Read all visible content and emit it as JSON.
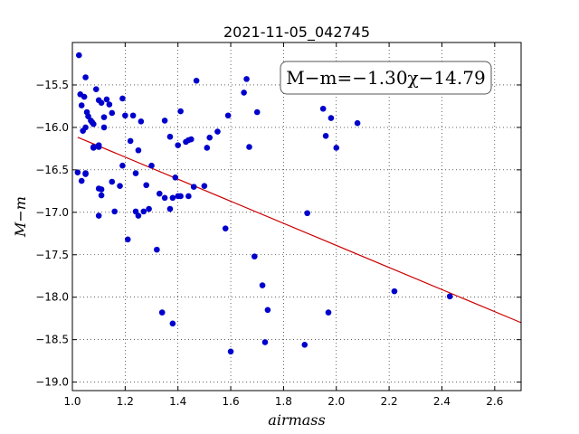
{
  "chart_data": {
    "type": "scatter",
    "title": "2021-11-05_042745",
    "xlabel": "airmass",
    "ylabel": "M−m",
    "annotation": "M−m=−1.30χ−14.79",
    "xlim": [
      1.0,
      2.7
    ],
    "ylim": [
      -19.1,
      -15.0
    ],
    "y_inverted": true,
    "grid": true,
    "xticks": [
      "1.0",
      "1.2",
      "1.4",
      "1.6",
      "1.8",
      "2.0",
      "2.2",
      "2.4",
      "2.6"
    ],
    "yticks": [
      "−15.5",
      "−16.0",
      "−16.5",
      "−17.0",
      "−17.5",
      "−18.0",
      "−18.5",
      "−19.0"
    ],
    "series": [
      {
        "marker_color": "#0000cc",
        "x": [
          1.025,
          1.03,
          1.035,
          1.04,
          1.05,
          1.045,
          1.05,
          1.055,
          1.06,
          1.07,
          1.075,
          1.08,
          1.09,
          1.1,
          1.11,
          1.12,
          1.13,
          1.14,
          1.15,
          1.19,
          1.2,
          1.23,
          1.26,
          1.35,
          1.41,
          1.44,
          1.47,
          1.52,
          1.55,
          1.59,
          1.65,
          1.66,
          1.67,
          1.7,
          1.95,
          1.96,
          1.98,
          2.0,
          2.08,
          1.1,
          1.12,
          1.08,
          1.1,
          1.05,
          1.05,
          1.02,
          1.035,
          1.08,
          1.1,
          1.11,
          1.15,
          1.18,
          1.19,
          1.22,
          1.24,
          1.25,
          1.28,
          1.3,
          1.37,
          1.39,
          1.4,
          1.43,
          1.45,
          1.5,
          1.51,
          1.11,
          1.16,
          1.1,
          1.24,
          1.25,
          1.27,
          1.29,
          1.33,
          1.35,
          1.37,
          1.38,
          1.4,
          1.41,
          1.44,
          1.46,
          1.21,
          1.32,
          1.58,
          1.69,
          1.89,
          1.34,
          1.38,
          1.6,
          1.72,
          1.73,
          1.74,
          1.88,
          1.97,
          2.22,
          2.43
        ],
        "y": [
          -15.15,
          -15.61,
          -15.74,
          -16.04,
          -15.41,
          -15.64,
          -16.0,
          -15.82,
          -15.87,
          -15.92,
          -15.94,
          -15.96,
          -15.55,
          -15.68,
          -15.71,
          -15.88,
          -15.67,
          -15.73,
          -15.83,
          -15.66,
          -15.86,
          -15.86,
          -15.93,
          -15.92,
          -15.81,
          -16.15,
          -15.45,
          -16.12,
          -16.05,
          -15.86,
          -15.59,
          -15.43,
          -16.23,
          -15.82,
          -15.78,
          -16.1,
          -15.89,
          -16.24,
          -15.95,
          -16.23,
          -16.0,
          -16.23,
          -16.21,
          -16.55,
          -16.54,
          -16.53,
          -16.63,
          -16.24,
          -16.72,
          -16.8,
          -16.64,
          -16.69,
          -16.45,
          -16.16,
          -16.54,
          -16.27,
          -16.68,
          -16.45,
          -16.11,
          -16.59,
          -16.21,
          -16.17,
          -16.14,
          -16.69,
          -16.24,
          -16.73,
          -16.99,
          -17.04,
          -16.99,
          -17.04,
          -16.99,
          -16.96,
          -16.78,
          -16.83,
          -16.96,
          -16.83,
          -16.81,
          -16.81,
          -16.81,
          -16.7,
          -17.32,
          -17.44,
          -17.19,
          -17.52,
          -17.01,
          -18.18,
          -18.31,
          -18.64,
          -17.86,
          -18.53,
          -18.15,
          -18.56,
          -18.18,
          -17.93,
          -17.99
        ]
      }
    ],
    "fit_line": {
      "slope": -1.3,
      "intercept": -14.79,
      "x_range": [
        1.02,
        2.7
      ],
      "color": "#cc0000"
    }
  }
}
